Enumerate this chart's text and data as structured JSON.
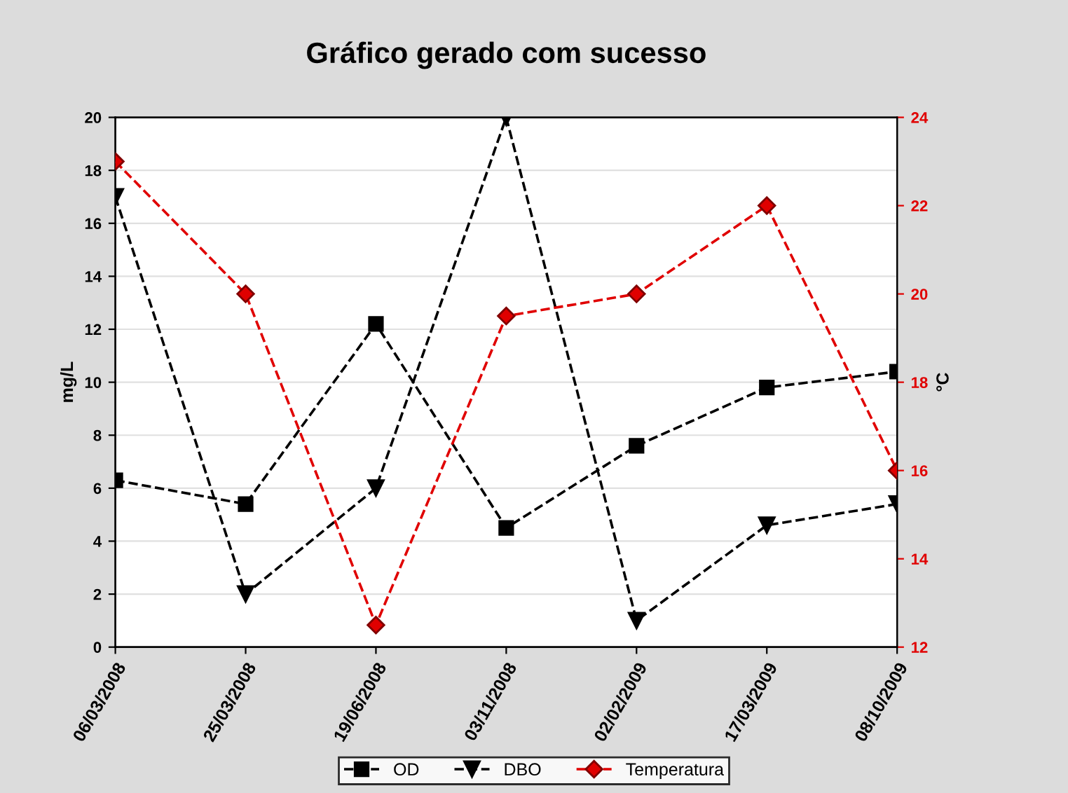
{
  "chart_data": {
    "type": "line",
    "title": "Gráfico gerado com sucesso",
    "ylabel": "mg/L",
    "y2label": "°C",
    "categories": [
      "06/03/2008",
      "25/03/2008",
      "19/06/2008",
      "03/11/2008",
      "02/02/2009",
      "17/03/2009",
      "08/10/2009"
    ],
    "series": [
      {
        "name": "OD",
        "color": "#000000",
        "marker": "square",
        "values": [
          6.3,
          5.4,
          12.2,
          4.5,
          7.6,
          9.8,
          10.4
        ]
      },
      {
        "name": "DBO",
        "color": "#000000",
        "marker": "triangle",
        "values": [
          17.0,
          2.0,
          6.0,
          20.0,
          1.0,
          4.6,
          5.4
        ]
      },
      {
        "name": "Temperatura",
        "color": "#e00000",
        "marker": "diamond",
        "axis": "y2",
        "values": [
          23.0,
          20.0,
          12.5,
          19.5,
          20.0,
          22.0,
          16.0
        ]
      }
    ],
    "ylim": [
      0,
      20
    ],
    "yticks": [
      0,
      2,
      4,
      6,
      8,
      10,
      12,
      14,
      16,
      18,
      20
    ],
    "y2lim": [
      12,
      24
    ],
    "y2ticks": [
      12,
      14,
      16,
      18,
      20,
      22,
      24
    ],
    "grid": "y",
    "legend": "bottom",
    "line_style": "dashed"
  }
}
